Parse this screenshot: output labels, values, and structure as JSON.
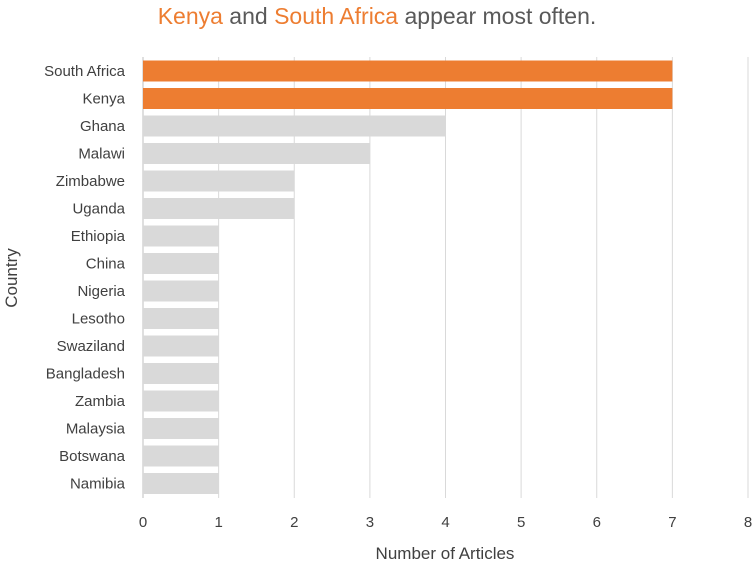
{
  "chart_data": {
    "type": "bar",
    "orientation": "horizontal",
    "title_parts": [
      {
        "text": "Kenya",
        "highlight": true
      },
      {
        "text": " and ",
        "highlight": false
      },
      {
        "text": "South Africa",
        "highlight": true
      },
      {
        "text": " appear most often.",
        "highlight": false
      }
    ],
    "xlabel": "Number of Articles",
    "ylabel": "Country",
    "categories": [
      "South Africa",
      "Kenya",
      "Ghana",
      "Malawi",
      "Zimbabwe",
      "Uganda",
      "Ethiopia",
      "China",
      "Nigeria",
      "Lesotho",
      "Swaziland",
      "Bangladesh",
      "Zambia",
      "Malaysia",
      "Botswana",
      "Namibia"
    ],
    "values": [
      7,
      7,
      4,
      3,
      2,
      2,
      1,
      1,
      1,
      1,
      1,
      1,
      1,
      1,
      1,
      1
    ],
    "highlighted": [
      "South Africa",
      "Kenya"
    ],
    "xlim": [
      0,
      8
    ],
    "xticks": [
      "0",
      "1",
      "2",
      "3",
      "4",
      "5",
      "6",
      "7",
      "8"
    ],
    "grid": "vertical",
    "colors": {
      "highlight": "#ED7D31",
      "default": "#D9D9D9",
      "title": "#595959",
      "gridline": "#D9D9D9"
    }
  }
}
